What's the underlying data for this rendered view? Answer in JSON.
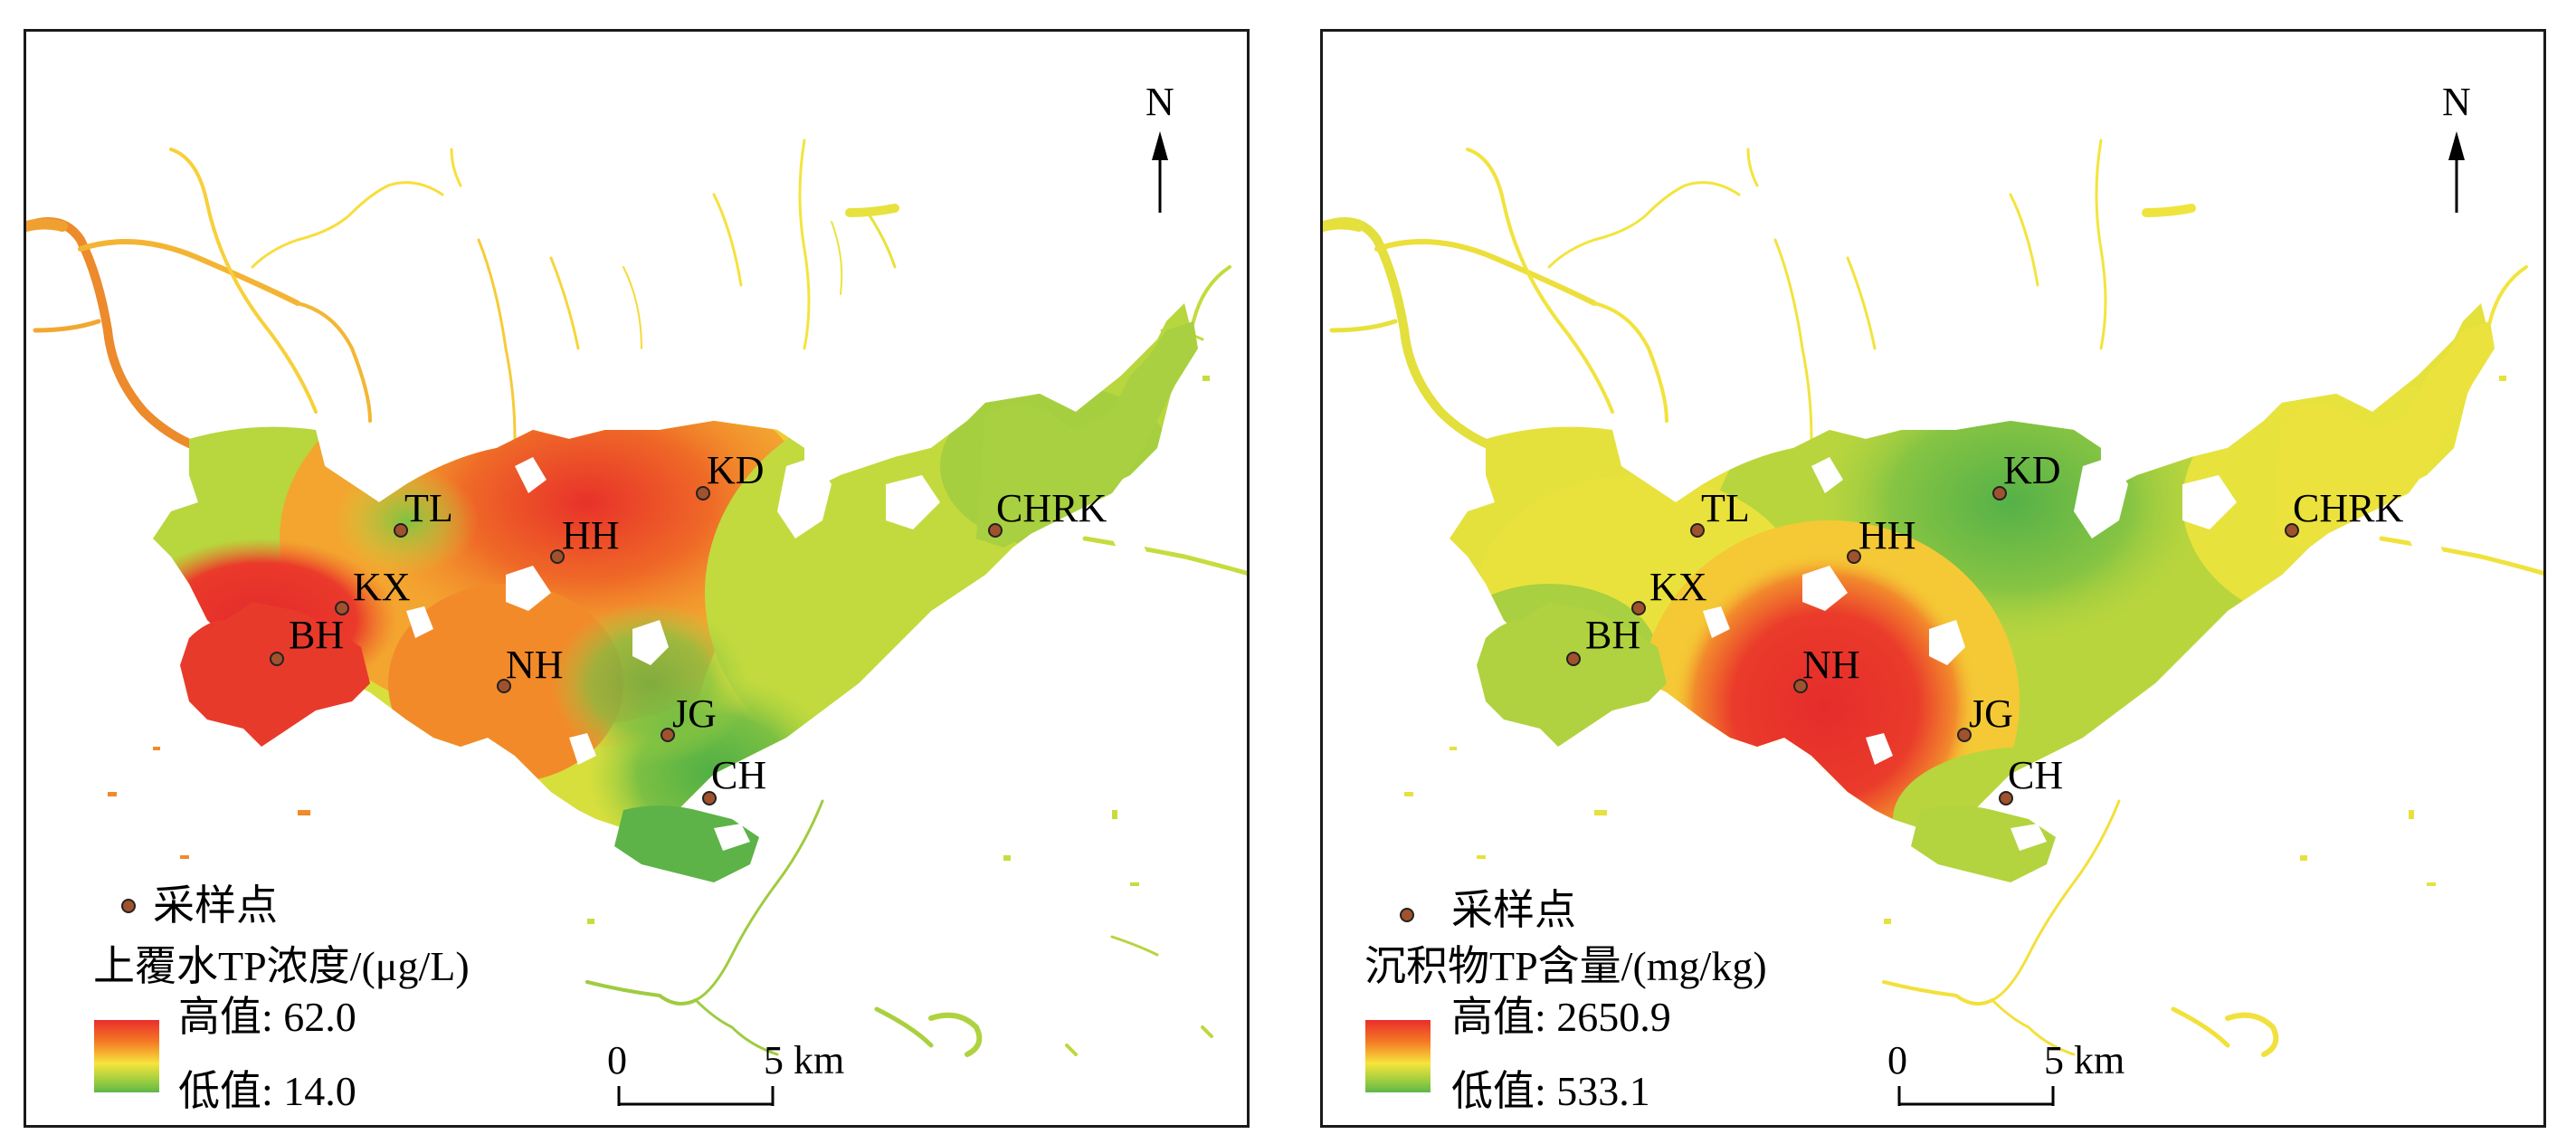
{
  "panels": [
    {
      "id": "left",
      "legend": {
        "points_label": "采样点",
        "title": "上覆水TP浓度/(μg/L)",
        "high_label": "高值: 62.0",
        "low_label": "低值: 14.0",
        "high_value": 62.0,
        "low_value": 14.0
      },
      "north": "N",
      "scale": {
        "zero": "0",
        "end": "5 km"
      },
      "sites": [
        {
          "name": "TL"
        },
        {
          "name": "KD"
        },
        {
          "name": "HH"
        },
        {
          "name": "CHRK"
        },
        {
          "name": "KX"
        },
        {
          "name": "BH"
        },
        {
          "name": "NH"
        },
        {
          "name": "JG"
        },
        {
          "name": "CH"
        }
      ]
    },
    {
      "id": "right",
      "legend": {
        "points_label": "采样点",
        "title": "沉积物TP含量/(mg/kg)",
        "high_label": "高值: 2650.9",
        "low_label": "低值: 533.1",
        "high_value": 2650.9,
        "low_value": 533.1
      },
      "north": "N",
      "scale": {
        "zero": "0",
        "end": "5 km"
      },
      "sites": [
        {
          "name": "TL"
        },
        {
          "name": "KD"
        },
        {
          "name": "HH"
        },
        {
          "name": "CHRK"
        },
        {
          "name": "KX"
        },
        {
          "name": "BH"
        },
        {
          "name": "NH"
        },
        {
          "name": "JG"
        },
        {
          "name": "CH"
        }
      ]
    }
  ],
  "colors": {
    "high": "#ea2d2d",
    "mid_high": "#f47a24",
    "mid": "#f7e43c",
    "mid_low": "#99cc40",
    "low": "#5fb84a",
    "site_marker": "#a0522d"
  }
}
